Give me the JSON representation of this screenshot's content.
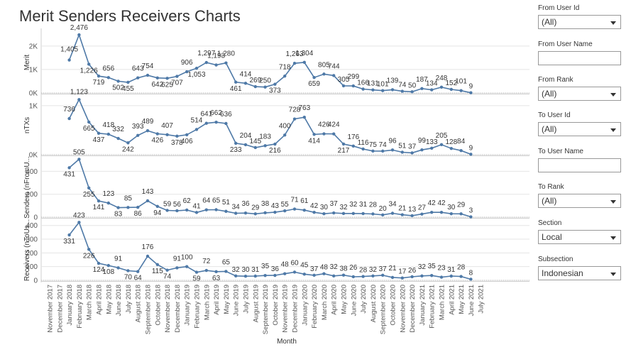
{
  "title": "Merit Senders Receivers Charts",
  "filters": [
    {
      "label": "From User Id",
      "kind": "dropdown",
      "value": "(All)"
    },
    {
      "label": "From User Name",
      "kind": "text",
      "value": ""
    },
    {
      "label": "From Rank",
      "kind": "dropdown",
      "value": "(All)"
    },
    {
      "label": "To User Id",
      "kind": "dropdown",
      "value": "(All)"
    },
    {
      "label": "To User Name",
      "kind": "text",
      "value": ""
    },
    {
      "label": "To Rank",
      "kind": "dropdown",
      "value": "(All)"
    },
    {
      "label": "Section",
      "kind": "dropdown",
      "value": "Local"
    },
    {
      "label": "Subsection",
      "kind": "dropdown",
      "value": "Indonesian"
    }
  ],
  "colors": {
    "line": "#4e79a7",
    "grid": "#e5e5e5",
    "text": "#333333"
  },
  "chart_data": {
    "type": "line",
    "xlabel": "Month",
    "categories": [
      "November 2017",
      "December 2017",
      "January 2018",
      "February 2018",
      "March 2018",
      "April 2018",
      "May 2018",
      "June 2018",
      "July 2018",
      "August 2018",
      "September 2018",
      "October 2018",
      "November 2018",
      "December 2018",
      "January 2019",
      "February 2019",
      "March 2019",
      "April 2019",
      "May 2019",
      "June 2019",
      "July 2019",
      "August 2019",
      "September 2019",
      "October 2019",
      "November 2019",
      "December 2019",
      "January 2020",
      "February 2020",
      "March 2020",
      "April 2020",
      "May 2020",
      "June 2020",
      "July 2020",
      "August 2020",
      "September 2020",
      "October 2020",
      "November 2020",
      "December 2020",
      "January 2021",
      "February 2021",
      "March 2021",
      "April 2021",
      "May 2021",
      "June 2021",
      "July 2021"
    ],
    "series": [
      {
        "name": "Merit",
        "tick_labels": [
          "0K",
          "1K",
          "2K"
        ],
        "ylim": [
          0,
          2600
        ],
        "values": [
          null,
          null,
          1405,
          2476,
          1226,
          719,
          656,
          502,
          455,
          643,
          754,
          642,
          625,
          707,
          906,
          1053,
          1297,
          1193,
          1280,
          461,
          414,
          269,
          250,
          373,
          718,
          1263,
          1304,
          659,
          805,
          744,
          305,
          299,
          166,
          131,
          101,
          139,
          74,
          50,
          187,
          134,
          248,
          152,
          101,
          9,
          null
        ]
      },
      {
        "name": "nTXs",
        "tick_labels": [
          "0K",
          "1K"
        ],
        "ylim": [
          0,
          1200
        ],
        "values": [
          null,
          null,
          736,
          1123,
          665,
          437,
          418,
          332,
          242,
          393,
          489,
          426,
          407,
          378,
          406,
          514,
          641,
          662,
          636,
          233,
          204,
          145,
          183,
          216,
          400,
          728,
          763,
          414,
          426,
          424,
          217,
          176,
          116,
          75,
          74,
          96,
          51,
          37,
          99,
          133,
          205,
          128,
          84,
          9,
          null
        ]
      },
      {
        "name": "Senders (nFromU...",
        "tick_labels": [
          "0",
          "200",
          "400"
        ],
        "ylim": [
          0,
          520
        ],
        "values": [
          null,
          null,
          431,
          505,
          255,
          141,
          123,
          83,
          85,
          86,
          143,
          94,
          59,
          56,
          62,
          41,
          64,
          65,
          51,
          34,
          36,
          29,
          38,
          43,
          55,
          71,
          61,
          42,
          30,
          37,
          32,
          32,
          31,
          28,
          20,
          34,
          21,
          13,
          27,
          42,
          42,
          30,
          29,
          3,
          null
        ]
      },
      {
        "name": "Receivers (nToUs...",
        "tick_labels": [
          "0",
          "100",
          "200",
          "300",
          "400"
        ],
        "ylim": [
          0,
          440
        ],
        "values": [
          null,
          null,
          331,
          423,
          226,
          124,
          108,
          91,
          70,
          64,
          176,
          115,
          74,
          91,
          100,
          59,
          72,
          63,
          65,
          32,
          30,
          31,
          35,
          36,
          48,
          60,
          45,
          37,
          48,
          32,
          38,
          26,
          28,
          32,
          37,
          21,
          17,
          26,
          32,
          35,
          23,
          31,
          28,
          8,
          null
        ]
      }
    ]
  }
}
